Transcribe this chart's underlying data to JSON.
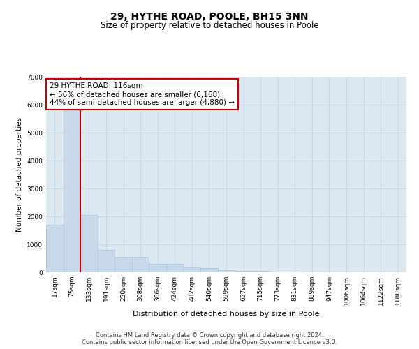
{
  "title": "29, HYTHE ROAD, POOLE, BH15 3NN",
  "subtitle": "Size of property relative to detached houses in Poole",
  "xlabel": "Distribution of detached houses by size in Poole",
  "ylabel": "Number of detached properties",
  "bin_labels": [
    "17sqm",
    "75sqm",
    "133sqm",
    "191sqm",
    "250sqm",
    "308sqm",
    "366sqm",
    "424sqm",
    "482sqm",
    "540sqm",
    "599sqm",
    "657sqm",
    "715sqm",
    "773sqm",
    "831sqm",
    "889sqm",
    "947sqm",
    "1006sqm",
    "1064sqm",
    "1122sqm",
    "1180sqm"
  ],
  "bar_heights": [
    1700,
    5800,
    2050,
    800,
    550,
    550,
    290,
    290,
    175,
    145,
    80,
    60,
    55,
    22,
    14,
    9,
    7,
    5,
    4,
    3,
    2
  ],
  "bar_color": "#c8daea",
  "bar_edgecolor": "#a8c4dc",
  "bar_linewidth": 0.5,
  "vline_color": "#cc0000",
  "annotation_text": "29 HYTHE ROAD: 116sqm\n← 56% of detached houses are smaller (6,168)\n44% of semi-detached houses are larger (4,880) →",
  "annotation_box_color": "#ffffff",
  "annotation_box_edgecolor": "#cc0000",
  "ylim": [
    0,
    7000
  ],
  "yticks": [
    0,
    1000,
    2000,
    3000,
    4000,
    5000,
    6000,
    7000
  ],
  "grid_color": "#c8d4e8",
  "plot_bg_color": "#dce8f0",
  "footer_line1": "Contains HM Land Registry data © Crown copyright and database right 2024.",
  "footer_line2": "Contains public sector information licensed under the Open Government Licence v3.0.",
  "title_fontsize": 10,
  "subtitle_fontsize": 8.5,
  "annotation_fontsize": 7.5,
  "tick_fontsize": 6.5,
  "ylabel_fontsize": 7.5,
  "xlabel_fontsize": 8,
  "footer_fontsize": 6
}
